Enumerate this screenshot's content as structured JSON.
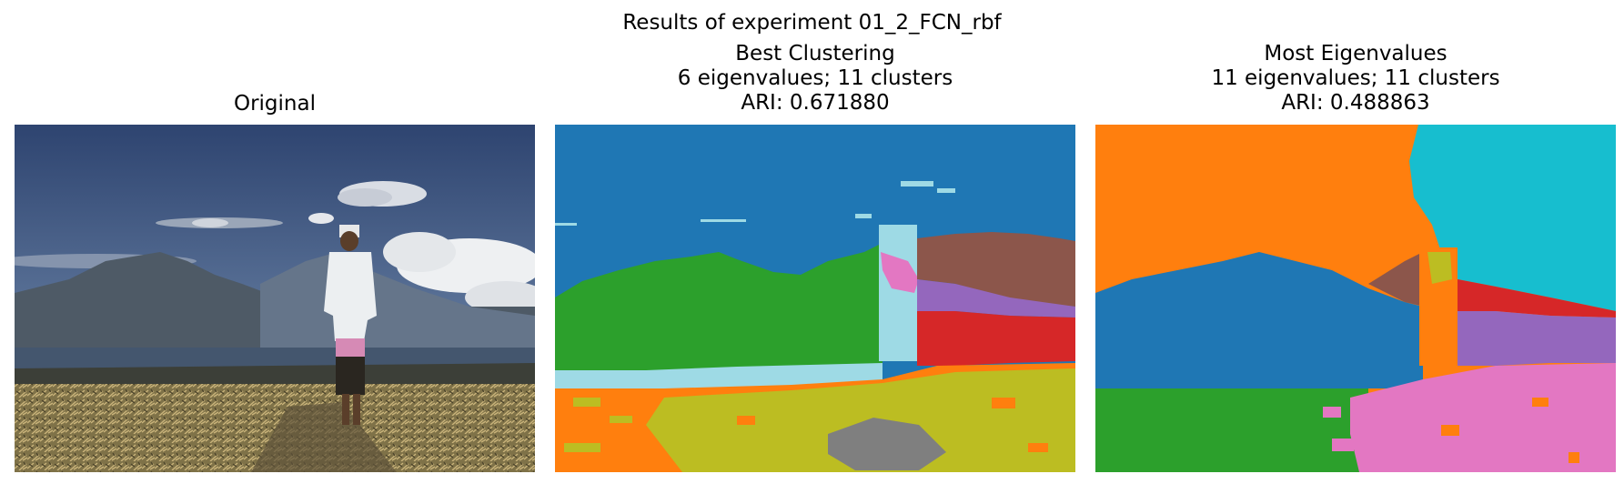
{
  "figure": {
    "suptitle": "Results of experiment 01_2_FCN_rbf"
  },
  "panels": [
    {
      "title_lines": [
        "Original"
      ]
    },
    {
      "title_lines": [
        "Best Clustering",
        "6 eigenvalues; 11 clusters",
        "ARI: 0.671880"
      ]
    },
    {
      "title_lines": [
        "Most Eigenvalues",
        "11 eigenvalues; 11 clusters",
        "ARI: 0.488863"
      ]
    }
  ],
  "colors": {
    "tab_blue": "#1f77b4",
    "tab_orange": "#ff7f0e",
    "tab_green": "#2ca02c",
    "tab_red": "#d62728",
    "tab_purple": "#9467bd",
    "tab_brown": "#8c564b",
    "tab_pink": "#e377c2",
    "tab_gray": "#7f7f7f",
    "tab_olive": "#bcbd22",
    "tab_cyan": "#17becf",
    "light_cyan": "#9edae5"
  }
}
